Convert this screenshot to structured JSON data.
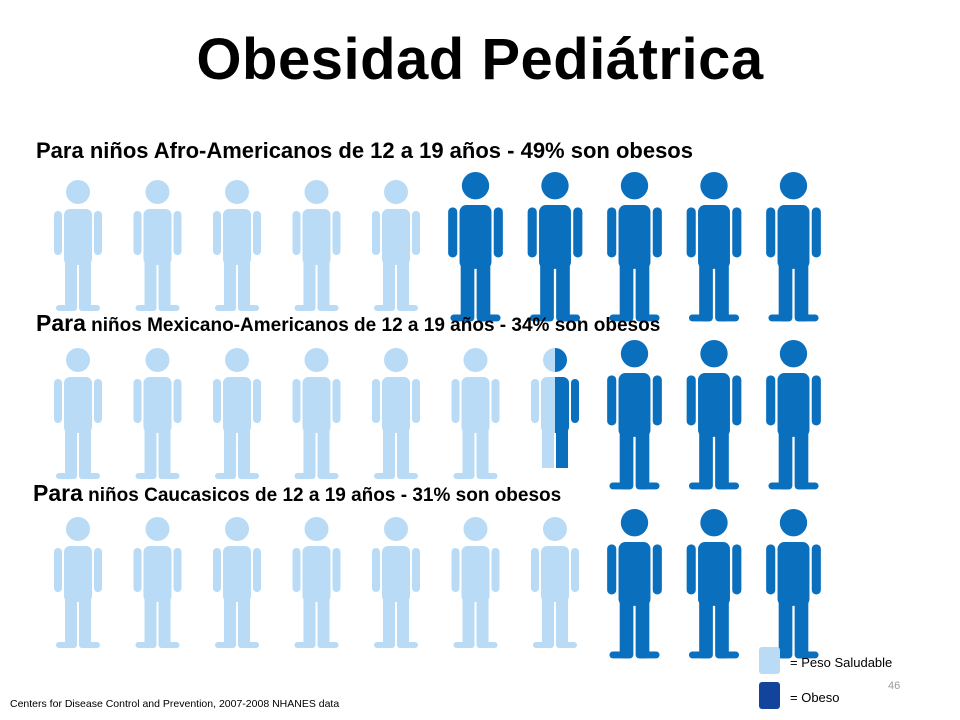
{
  "title": "Obesidad Pediátrica",
  "colors": {
    "healthy": "#b9dbf6",
    "obese": "#0a6fbd",
    "legend_obese": "#12449b"
  },
  "chart_data": {
    "type": "pictogram",
    "units_per_row": 10,
    "rows": [
      {
        "label_lead": "Para",
        "label_rest": " niños Afro-Americanos de 12 a 19 años - 49% son obesos",
        "percent_obese": 49,
        "obese_figures": 5
      },
      {
        "label_lead": "Para",
        "label_rest": " niños Mexicano-Americanos de 12 a 19 años - 34% son obesos",
        "percent_obese": 34,
        "obese_figures": 3.5
      },
      {
        "label_lead": "Para",
        "label_rest": " niños Caucasicos de 12 a 19 años - 31% son obesos",
        "percent_obese": 31,
        "obese_figures": 3
      }
    ],
    "legend": [
      {
        "label": "= Peso Saludable",
        "color": "healthy"
      },
      {
        "label": "= Obeso",
        "color": "obese"
      }
    ]
  },
  "source": "Centers for Disease Control and Prevention, 2007-2008 NHANES  data",
  "page_number": "46"
}
